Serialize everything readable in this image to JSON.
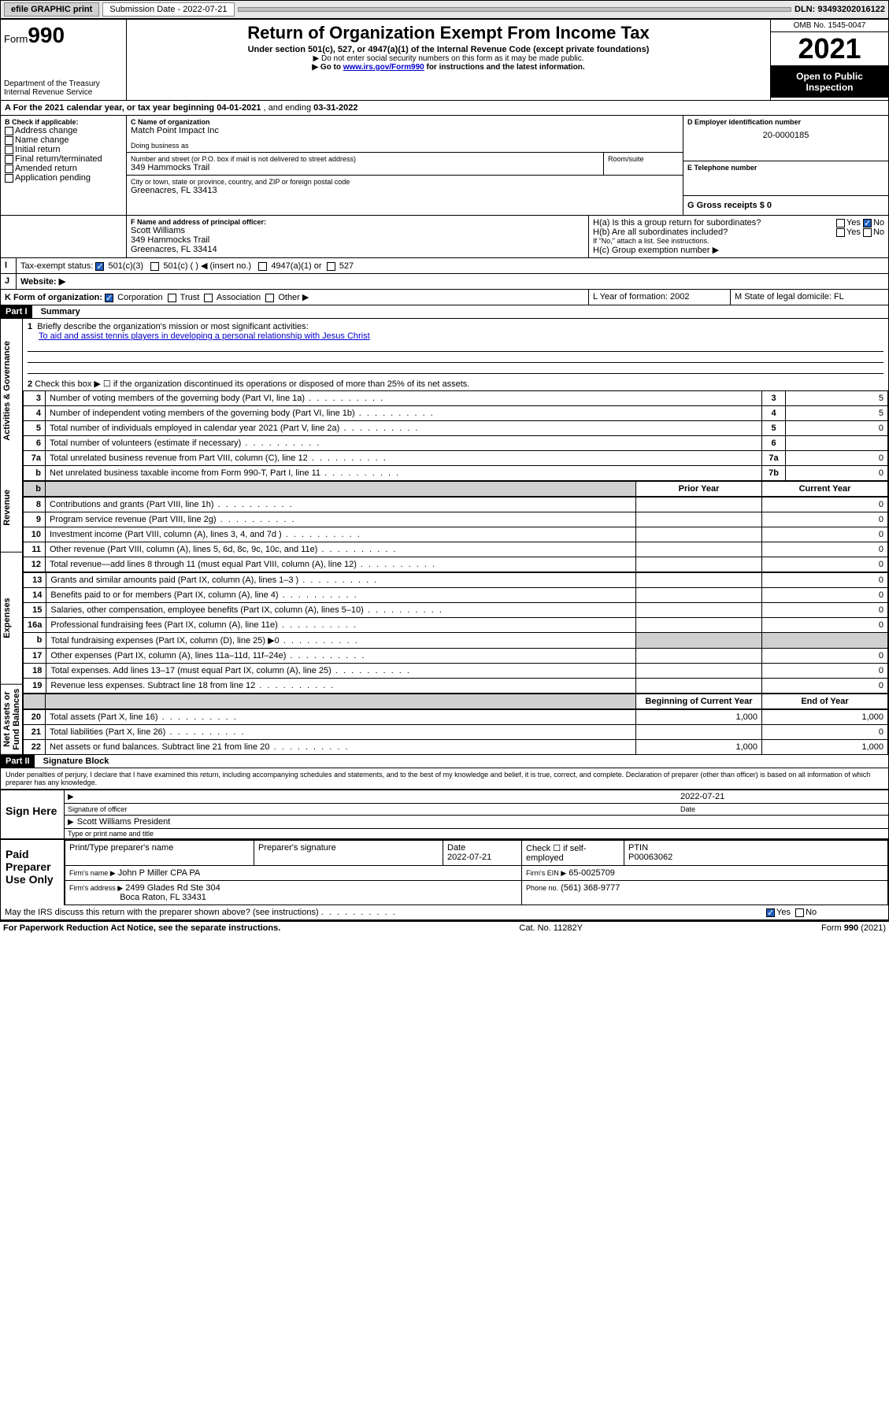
{
  "topbar": {
    "efile_label": "efile GRAPHIC print",
    "subdate_label": "Submission Date - 2022-07-21",
    "dln": "DLN: 93493202016122"
  },
  "header": {
    "form_word": "Form",
    "form_no": "990",
    "dept": "Department of the Treasury",
    "irs": "Internal Revenue Service",
    "title": "Return of Organization Exempt From Income Tax",
    "sub": "Under section 501(c), 527, or 4947(a)(1) of the Internal Revenue Code (except private foundations)",
    "note1": "▶ Do not enter social security numbers on this form as it may be made public.",
    "note2_pre": "▶ Go to ",
    "note2_link": "www.irs.gov/Form990",
    "note2_post": " for instructions and the latest information.",
    "omb": "OMB No. 1545-0047",
    "year": "2021",
    "open": "Open to Public Inspection"
  },
  "a_line": {
    "prefix": "A For the 2021 calendar year, or tax year beginning ",
    "begin": "04-01-2021",
    "mid": " , and ending ",
    "end": "03-31-2022"
  },
  "b": {
    "label": "B Check if applicable:",
    "opts": [
      "Address change",
      "Name change",
      "Initial return",
      "Final return/terminated",
      "Amended return",
      "Application pending"
    ]
  },
  "c": {
    "name_label": "C Name of organization",
    "name": "Match Point Impact Inc",
    "dba_label": "Doing business as",
    "street_label": "Number and street (or P.O. box if mail is not delivered to street address)",
    "room_label": "Room/suite",
    "street": "349 Hammocks Trail",
    "city_label": "City or town, state or province, country, and ZIP or foreign postal code",
    "city": "Greenacres, FL  33413"
  },
  "d": {
    "label": "D Employer identification number",
    "value": "20-0000185"
  },
  "e": {
    "label": "E Telephone number",
    "value": ""
  },
  "g": {
    "label": "G Gross receipts $ 0"
  },
  "f": {
    "label": "F  Name and address of principal officer:",
    "name": "Scott Williams",
    "street": "349 Hammocks Trail",
    "city": "Greenacres, FL  33414"
  },
  "h": {
    "a": "H(a)  Is this a group return for subordinates?",
    "b": "H(b)  Are all subordinates included?",
    "note": "If \"No,\" attach a list. See instructions.",
    "c": "H(c)  Group exemption number ▶",
    "yes": "Yes",
    "no": "No"
  },
  "i": {
    "label": "Tax-exempt status:",
    "o1": "501(c)(3)",
    "o2": "501(c) (   ) ◀ (insert no.)",
    "o3": "4947(a)(1) or",
    "o4": "527"
  },
  "j": {
    "label": "Website: ▶"
  },
  "k": {
    "label": "K Form of organization:",
    "opts": [
      "Corporation",
      "Trust",
      "Association",
      "Other ▶"
    ]
  },
  "l": {
    "label": "L Year of formation: 2002"
  },
  "m": {
    "label": "M State of legal domicile: FL"
  },
  "part1": {
    "hdr": "Part I",
    "title": "Summary",
    "q1": "Briefly describe the organization's mission or most significant activities:",
    "q1_ans": "To aid and assist tennis players in developing a personal relationship with Jesus Christ",
    "q2": "Check this box ▶ ☐  if the organization discontinued its operations or disposed of more than 25% of its net assets.",
    "sections": {
      "gov": "Activities & Governance",
      "rev": "Revenue",
      "exp": "Expenses",
      "net": "Net Assets or Fund Balances"
    },
    "govlines": [
      {
        "n": "3",
        "t": "Number of voting members of the governing body (Part VI, line 1a)",
        "idx": "3",
        "v": "5"
      },
      {
        "n": "4",
        "t": "Number of independent voting members of the governing body (Part VI, line 1b)",
        "idx": "4",
        "v": "5"
      },
      {
        "n": "5",
        "t": "Total number of individuals employed in calendar year 2021 (Part V, line 2a)",
        "idx": "5",
        "v": "0"
      },
      {
        "n": "6",
        "t": "Total number of volunteers (estimate if necessary)",
        "idx": "6",
        "v": ""
      },
      {
        "n": "7a",
        "t": "Total unrelated business revenue from Part VIII, column (C), line 12",
        "idx": "7a",
        "v": "0"
      },
      {
        "n": "b",
        "t": "Net unrelated business taxable income from Form 990-T, Part I, line 11",
        "idx": "7b",
        "v": "0"
      }
    ],
    "col_prior": "Prior Year",
    "col_curr": "Current Year",
    "revlines": [
      {
        "n": "8",
        "t": "Contributions and grants (Part VIII, line 1h)",
        "p": "",
        "c": "0"
      },
      {
        "n": "9",
        "t": "Program service revenue (Part VIII, line 2g)",
        "p": "",
        "c": "0"
      },
      {
        "n": "10",
        "t": "Investment income (Part VIII, column (A), lines 3, 4, and 7d )",
        "p": "",
        "c": "0"
      },
      {
        "n": "11",
        "t": "Other revenue (Part VIII, column (A), lines 5, 6d, 8c, 9c, 10c, and 11e)",
        "p": "",
        "c": "0"
      },
      {
        "n": "12",
        "t": "Total revenue—add lines 8 through 11 (must equal Part VIII, column (A), line 12)",
        "p": "",
        "c": "0"
      }
    ],
    "explines": [
      {
        "n": "13",
        "t": "Grants and similar amounts paid (Part IX, column (A), lines 1–3 )",
        "p": "",
        "c": "0"
      },
      {
        "n": "14",
        "t": "Benefits paid to or for members (Part IX, column (A), line 4)",
        "p": "",
        "c": "0"
      },
      {
        "n": "15",
        "t": "Salaries, other compensation, employee benefits (Part IX, column (A), lines 5–10)",
        "p": "",
        "c": "0"
      },
      {
        "n": "16a",
        "t": "Professional fundraising fees (Part IX, column (A), line 11e)",
        "p": "",
        "c": "0"
      },
      {
        "n": "b",
        "t": "Total fundraising expenses (Part IX, column (D), line 25) ▶0",
        "p": "shade",
        "c": "shade"
      },
      {
        "n": "17",
        "t": "Other expenses (Part IX, column (A), lines 11a–11d, 11f–24e)",
        "p": "",
        "c": "0"
      },
      {
        "n": "18",
        "t": "Total expenses. Add lines 13–17 (must equal Part IX, column (A), line 25)",
        "p": "",
        "c": "0"
      },
      {
        "n": "19",
        "t": "Revenue less expenses. Subtract line 18 from line 12",
        "p": "",
        "c": "0"
      }
    ],
    "col_beg": "Beginning of Current Year",
    "col_end": "End of Year",
    "netlines": [
      {
        "n": "20",
        "t": "Total assets (Part X, line 16)",
        "p": "1,000",
        "c": "1,000"
      },
      {
        "n": "21",
        "t": "Total liabilities (Part X, line 26)",
        "p": "",
        "c": "0"
      },
      {
        "n": "22",
        "t": "Net assets or fund balances. Subtract line 21 from line 20",
        "p": "1,000",
        "c": "1,000"
      }
    ]
  },
  "part2": {
    "hdr": "Part II",
    "title": "Signature Block",
    "decl": "Under penalties of perjury, I declare that I have examined this return, including accompanying schedules and statements, and to the best of my knowledge and belief, it is true, correct, and complete. Declaration of preparer (other than officer) is based on all information of which preparer has any knowledge.",
    "sign_here": "Sign Here",
    "sig_officer": "Signature of officer",
    "sig_date": "2022-07-21",
    "date_label": "Date",
    "officer_name": "Scott Williams  President",
    "officer_label": "Type or print name and title",
    "paid": "Paid Preparer Use Only",
    "prep_name_label": "Print/Type preparer's name",
    "prep_sig_label": "Preparer's signature",
    "prep_date": "2022-07-21",
    "check_self": "Check ☐ if self-employed",
    "ptin_label": "PTIN",
    "ptin": "P00063062",
    "firm_name_label": "Firm's name    ▶",
    "firm_name": "John P Miller CPA PA",
    "firm_ein_label": "Firm's EIN ▶",
    "firm_ein": "65-0025709",
    "firm_addr_label": "Firm's address ▶",
    "firm_addr1": "2499 Glades Rd Ste 304",
    "firm_addr2": "Boca Raton, FL  33431",
    "phone_label": "Phone no.",
    "phone": "(561) 368-9777",
    "discuss": "May the IRS discuss this return with the preparer shown above? (see instructions)"
  },
  "footer": {
    "pra": "For Paperwork Reduction Act Notice, see the separate instructions.",
    "cat": "Cat. No. 11282Y",
    "form": "Form 990 (2021)"
  }
}
